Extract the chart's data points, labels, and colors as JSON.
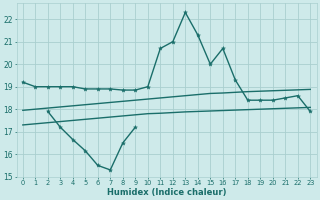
{
  "xlabel": "Humidex (Indice chaleur)",
  "x_all": [
    0,
    1,
    2,
    3,
    4,
    5,
    6,
    7,
    8,
    9,
    10,
    11,
    12,
    13,
    14,
    15,
    16,
    17,
    18,
    19,
    20,
    21,
    22,
    23
  ],
  "line_wavy": [
    19.2,
    19.0,
    19.0,
    19.0,
    19.0,
    18.9,
    18.9,
    18.9,
    18.85,
    18.85,
    19.0,
    20.7,
    21.0,
    22.3,
    21.3,
    20.0,
    20.7,
    19.3,
    18.4,
    18.4,
    18.4,
    18.5,
    18.6,
    17.9
  ],
  "line_mid_x": [
    0,
    1,
    2,
    3,
    4,
    5,
    6,
    7,
    8,
    9,
    10,
    11,
    12,
    13,
    14,
    15,
    16,
    17,
    18,
    19,
    20,
    21,
    22,
    23
  ],
  "line_mid_y": [
    17.95,
    18.0,
    18.05,
    18.1,
    18.15,
    18.2,
    18.25,
    18.3,
    18.35,
    18.4,
    18.45,
    18.5,
    18.55,
    18.6,
    18.65,
    18.7,
    18.72,
    18.75,
    18.78,
    18.8,
    18.82,
    18.84,
    18.86,
    18.88
  ],
  "line_bot_x": [
    0,
    1,
    2,
    3,
    4,
    5,
    6,
    7,
    8,
    9,
    10,
    11,
    12,
    13,
    14,
    15,
    16,
    17,
    18,
    19,
    20,
    21,
    22,
    23
  ],
  "line_bot_y": [
    17.3,
    17.35,
    17.4,
    17.45,
    17.5,
    17.55,
    17.6,
    17.65,
    17.7,
    17.75,
    17.8,
    17.82,
    17.85,
    17.88,
    17.9,
    17.92,
    17.94,
    17.96,
    17.98,
    18.0,
    18.02,
    18.04,
    18.06,
    18.08
  ],
  "line_jagged_x": [
    2,
    3,
    4,
    5,
    6,
    7,
    8,
    9
  ],
  "line_jagged_y": [
    17.9,
    17.2,
    16.65,
    16.15,
    15.5,
    15.3,
    16.5,
    17.2
  ],
  "ylim": [
    15,
    22.7
  ],
  "yticks": [
    15,
    16,
    17,
    18,
    19,
    20,
    21,
    22
  ],
  "bg_color": "#ceeaea",
  "grid_color": "#aacfcf",
  "line_color": "#1a6e6a",
  "lw_wavy": 1.0,
  "lw_flat": 1.0,
  "marker_size": 2.5
}
